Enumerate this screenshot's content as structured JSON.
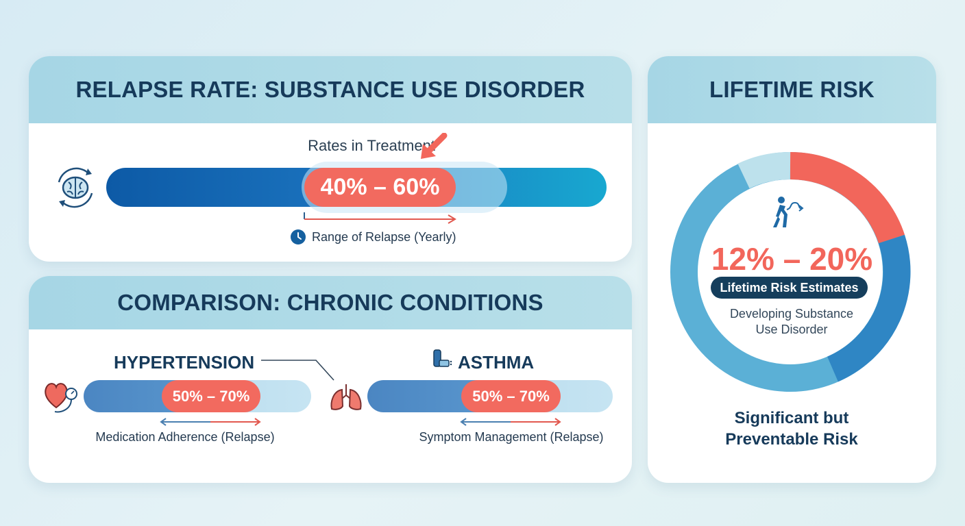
{
  "relapse": {
    "title": "RELAPSE RATE: SUBSTANCE USE DISORDER",
    "subtitle": "Rates in Treatment",
    "range_label": "40% – 60%",
    "caption": "Range of Relapse (Yearly)",
    "range": [
      0.4,
      0.6
    ],
    "icons": [
      "brain-cycle-icon",
      "arrow-pointer-icon",
      "clock-icon"
    ]
  },
  "comparison": {
    "title": "COMPARISON: CHRONIC CONDITIONS",
    "conditions": [
      {
        "name": "HYPERTENSION",
        "range_label": "50% – 70%",
        "caption": "Medication Adherence (Relapse)",
        "icon": "heart-blood-pressure-icon"
      },
      {
        "name": "ASTHMA",
        "range_label": "50% – 70%",
        "caption": "Symptom Management (Relapse)",
        "icon": "inhaler-icon"
      }
    ],
    "center_icon": "lungs-icon"
  },
  "lifetime": {
    "title": "LIFETIME RISK",
    "range_label": "12% – 20%",
    "badge": "Lifetime Risk Estimates",
    "description": "Developing Substance Use Disorder",
    "footer": "Significant but Preventable Risk",
    "icon": "person-walking-icon"
  },
  "colors": {
    "header": "#a6d6e5",
    "accent_red": "#f26a5f",
    "bar_blue": "#1565b0",
    "bar_cyan": "#18a8d0",
    "navy": "#163a5a"
  }
}
